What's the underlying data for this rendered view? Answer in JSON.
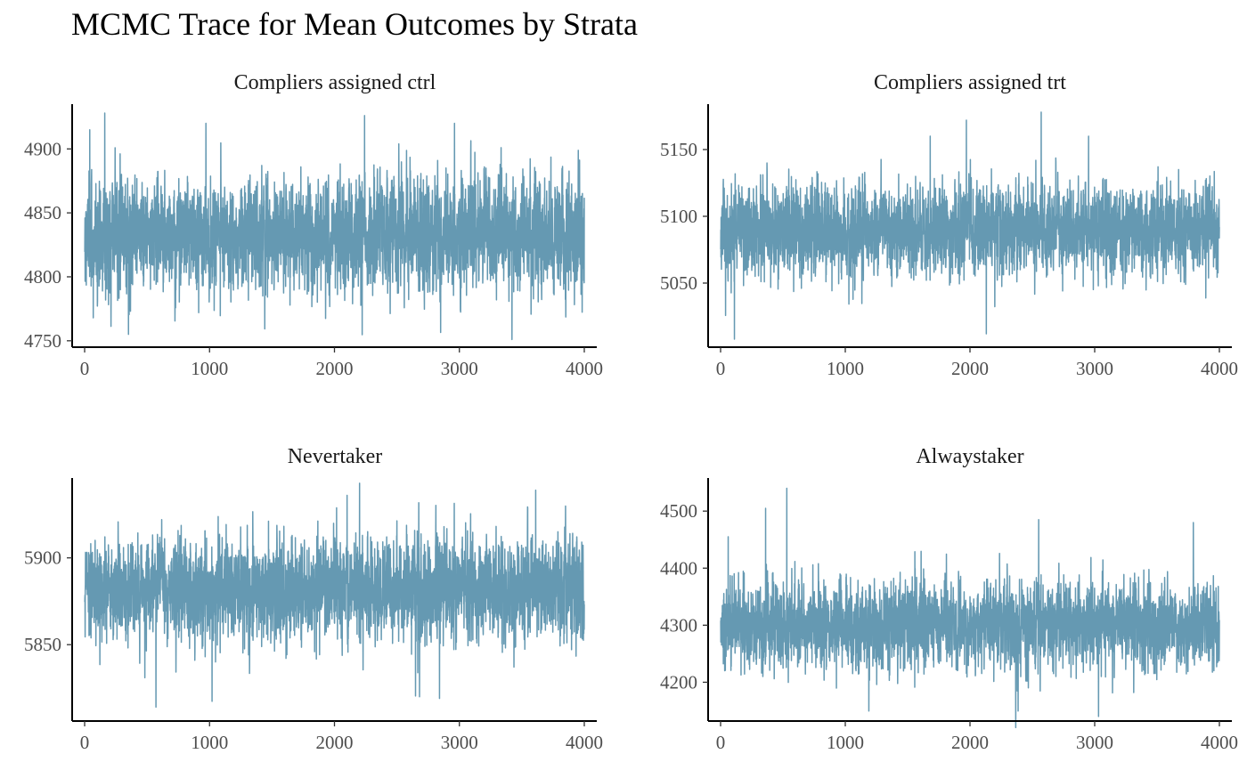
{
  "title": "MCMC Trace for Mean Outcomes by Strata",
  "colors": {
    "trace": "#6599b2",
    "axis": "#000000",
    "tick_text": "#4d4d4d"
  },
  "chart_data": [
    {
      "type": "line",
      "subtitle": "Compliers assigned ctrl",
      "x": {
        "range": [
          0,
          4000
        ],
        "ticks": [
          0,
          1000,
          2000,
          3000,
          4000
        ],
        "tick_labels": [
          "0",
          "1000",
          "2000",
          "3000",
          "4000"
        ],
        "lim": [
          -100,
          4100
        ]
      },
      "y": {
        "ticks": [
          4750,
          4800,
          4850,
          4900
        ],
        "tick_labels": [
          "4750",
          "4800",
          "4850",
          "4900"
        ],
        "lim": [
          4745,
          4935
        ]
      },
      "trace": {
        "n_iter": 4000,
        "center": 4833,
        "sd": 21,
        "spikes": [
          [
            160,
            4928
          ],
          [
            2240,
            4926
          ],
          [
            3420,
            4751
          ],
          [
            350,
            4755
          ],
          [
            970,
            4920
          ],
          [
            2960,
            4920
          ],
          [
            40,
            4915
          ]
        ]
      }
    },
    {
      "type": "line",
      "subtitle": "Compliers assigned trt",
      "x": {
        "range": [
          0,
          4000
        ],
        "ticks": [
          0,
          1000,
          2000,
          3000,
          4000
        ],
        "tick_labels": [
          "0",
          "1000",
          "2000",
          "3000",
          "4000"
        ],
        "lim": [
          -100,
          4100
        ]
      },
      "y": {
        "ticks": [
          5050,
          5100,
          5150
        ],
        "tick_labels": [
          "5050",
          "5100",
          "5150"
        ],
        "lim": [
          5002,
          5184
        ]
      },
      "trace": {
        "n_iter": 4000,
        "center": 5090,
        "sd": 16,
        "spikes": [
          [
            2570,
            5178
          ],
          [
            1970,
            5172
          ],
          [
            110,
            5008
          ],
          [
            2130,
            5012
          ],
          [
            1680,
            5160
          ],
          [
            2950,
            5160
          ]
        ]
      }
    },
    {
      "type": "line",
      "subtitle": "Nevertaker",
      "x": {
        "range": [
          0,
          4000
        ],
        "ticks": [
          0,
          1000,
          2000,
          3000,
          4000
        ],
        "tick_labels": [
          "0",
          "1000",
          "2000",
          "3000",
          "4000"
        ],
        "lim": [
          -100,
          4100
        ]
      },
      "y": {
        "ticks": [
          5850,
          5900
        ],
        "tick_labels": [
          "5850",
          "5900"
        ],
        "lim": [
          5806,
          5946
        ]
      },
      "trace": {
        "n_iter": 4000,
        "center": 5882,
        "sd": 14,
        "spikes": [
          [
            2200,
            5943
          ],
          [
            570,
            5814
          ],
          [
            2680,
            5820
          ],
          [
            2840,
            5819
          ],
          [
            3610,
            5939
          ],
          [
            2100,
            5936
          ]
        ]
      }
    },
    {
      "type": "line",
      "subtitle": "Alwaystaker",
      "x": {
        "range": [
          0,
          4000
        ],
        "ticks": [
          0,
          1000,
          2000,
          3000,
          4000
        ],
        "tick_labels": [
          "0",
          "1000",
          "2000",
          "3000",
          "4000"
        ],
        "lim": [
          -100,
          4100
        ]
      },
      "y": {
        "ticks": [
          4200,
          4300,
          4400,
          4500
        ],
        "tick_labels": [
          "4200",
          "4300",
          "4400",
          "4500"
        ],
        "lim": [
          4132,
          4558
        ]
      },
      "trace": {
        "n_iter": 4000,
        "center": 4300,
        "sd": 36,
        "spikes": [
          [
            530,
            4540
          ],
          [
            360,
            4505
          ],
          [
            3030,
            4140
          ],
          [
            2550,
            4485
          ],
          [
            3790,
            4480
          ],
          [
            60,
            4455
          ]
        ]
      }
    }
  ]
}
